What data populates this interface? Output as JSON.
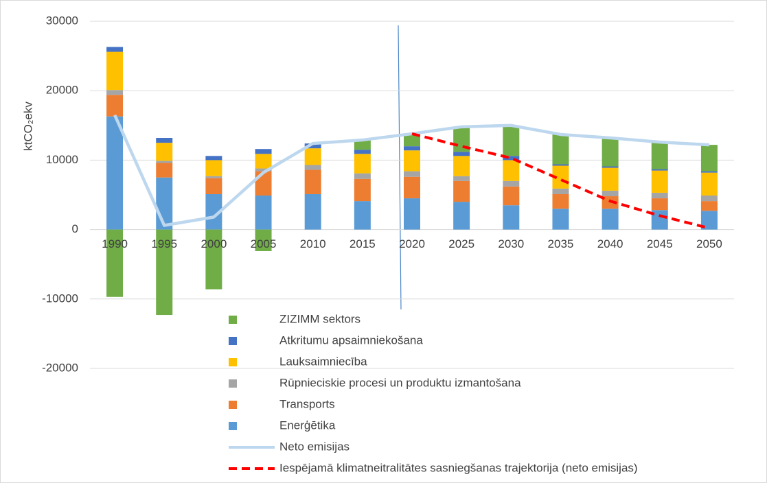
{
  "chart_data": {
    "type": "bar",
    "y_label": "ktCO₂ekv",
    "categories": [
      "1990",
      "1995",
      "2000",
      "2005",
      "2010",
      "2015",
      "2020",
      "2025",
      "2030",
      "2035",
      "2040",
      "2045",
      "2050"
    ],
    "ylim": [
      -20000,
      30000
    ],
    "yticks": [
      -20000,
      -10000,
      0,
      10000,
      20000,
      30000
    ],
    "grid": true,
    "legend": "bottom",
    "series": [
      {
        "name": "Enerģētika",
        "type": "bar",
        "color": "#5b9bd5",
        "values": [
          16300,
          7500,
          5100,
          4900,
          5100,
          4100,
          4500,
          4000,
          3500,
          3000,
          3000,
          2800,
          2700
        ]
      },
      {
        "name": "Transports",
        "type": "bar",
        "color": "#ed7d31",
        "values": [
          3100,
          2100,
          2300,
          3500,
          3500,
          3200,
          3100,
          3000,
          2700,
          2100,
          1800,
          1700,
          1400
        ]
      },
      {
        "name": "Rūpnieciskie procesi un produktu izmantošana",
        "type": "bar",
        "color": "#a5a5a5",
        "values": [
          700,
          300,
          300,
          400,
          700,
          800,
          800,
          700,
          800,
          800,
          800,
          800,
          800
        ]
      },
      {
        "name": "Lauksaimniecība",
        "type": "bar",
        "color": "#ffc000",
        "values": [
          5500,
          2600,
          2300,
          2100,
          2400,
          2800,
          3000,
          2900,
          3000,
          3300,
          3300,
          3200,
          3300
        ]
      },
      {
        "name": "Atkritumu apsaimniekošana",
        "type": "bar",
        "color": "#4472c4",
        "values": [
          700,
          700,
          600,
          700,
          700,
          600,
          600,
          600,
          600,
          200,
          200,
          200,
          200
        ]
      },
      {
        "name": "ZIZIMM sektors",
        "type": "bar",
        "color": "#70ad47",
        "values": [
          -9700,
          -12300,
          -8600,
          -3100,
          0,
          1500,
          1800,
          3600,
          4400,
          4300,
          4100,
          3900,
          3800
        ]
      },
      {
        "name": "Neto emisijas",
        "type": "line",
        "color": "#bdd7ee",
        "values": [
          16500,
          600,
          1800,
          8200,
          12400,
          12900,
          13800,
          14800,
          15000,
          13700,
          13200,
          12600,
          12200
        ]
      },
      {
        "name": "Iespējamā klimatneitralitātes sasniegšanas trajektorija (neto emisijas)",
        "type": "line",
        "dashed": true,
        "color": "#ff0000",
        "values": [
          null,
          null,
          null,
          null,
          null,
          null,
          13800,
          12000,
          10300,
          7200,
          4100,
          2000,
          200
        ]
      }
    ]
  }
}
